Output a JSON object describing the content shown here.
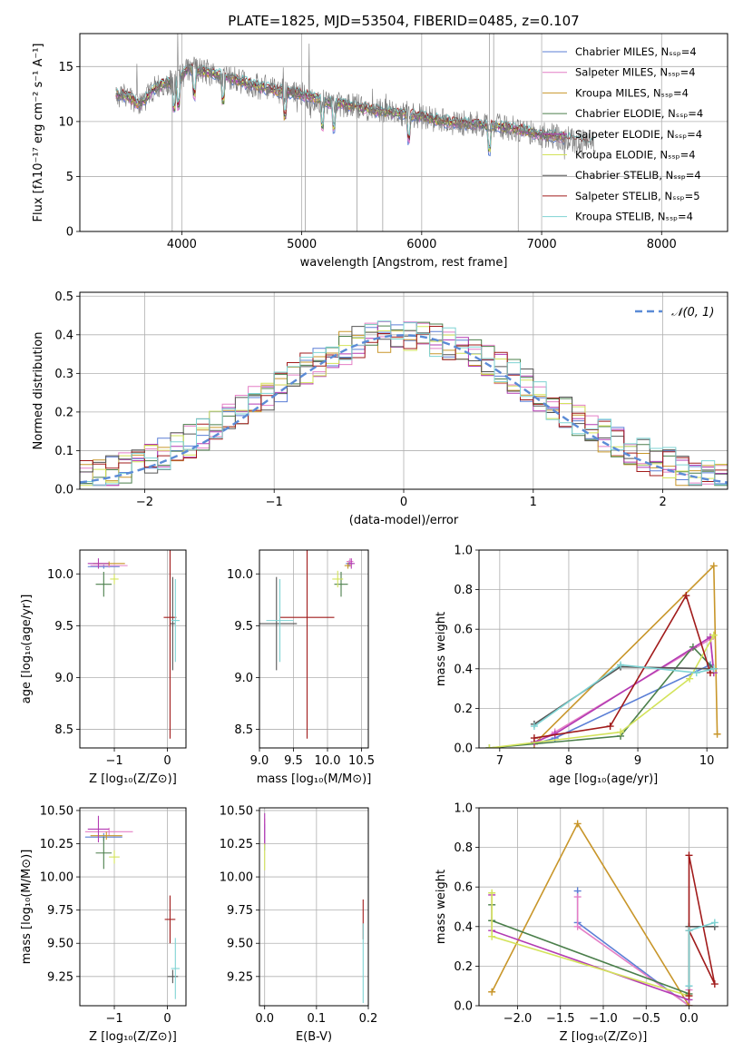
{
  "title": "PLATE=1825, MJD=53504, FIBERID=0485, z=0.107",
  "colors": [
    "#5b7fd6",
    "#e47fc6",
    "#c8962a",
    "#4b7f4b",
    "#b33bb3",
    "#d3e35a",
    "#555555",
    "#a11b1b",
    "#7ed3d3"
  ],
  "chart_data": [
    {
      "id": "spectrum",
      "type": "line",
      "title": "PLATE=1825, MJD=53504, FIBERID=0485, z=0.107",
      "xlabel": "wavelength [Angstrom, rest frame]",
      "ylabel": "Flux [fλ10⁻¹⁷ erg cm⁻² s⁻¹ A⁻¹]",
      "xlim": [
        3150,
        8550
      ],
      "ylim": [
        0,
        18
      ],
      "xticks": [
        "4000",
        "5000",
        "6000",
        "7000",
        "8000"
      ],
      "yticks": [
        "0",
        "5",
        "10",
        "15"
      ],
      "legend": "top-right",
      "data_trace": {
        "x": [
          3450,
          3550,
          3650,
          3750,
          3850,
          3950,
          4050,
          4200,
          4400,
          4600,
          4800,
          5000,
          5200,
          5400,
          5600,
          5800,
          6000,
          6200,
          6400,
          6600,
          6800,
          7000,
          7200,
          7400
        ],
        "y": [
          12.5,
          12.3,
          11.5,
          12.8,
          13.5,
          13.5,
          14.8,
          14.5,
          14.0,
          13.3,
          12.8,
          12.5,
          11.8,
          11.5,
          11.0,
          10.8,
          10.5,
          10.0,
          9.8,
          9.6,
          9.3,
          8.8,
          8.5,
          8.0
        ]
      },
      "series": [
        {
          "name": "Chabrier MILES, N_SSP=4"
        },
        {
          "name": "Salpeter MILES, N_SSP=4"
        },
        {
          "name": "Kroupa MILES, N_SSP=4"
        },
        {
          "name": "Chabrier ELODIE, N_SSP=4"
        },
        {
          "name": "Salpeter ELODIE, N_SSP=4"
        },
        {
          "name": "Kroupa ELODIE, N_SSP=4"
        },
        {
          "name": "Chabrier STELIB, N_SSP=4"
        },
        {
          "name": "Salpeter STELIB, N_SSP=5"
        },
        {
          "name": "Kroupa STELIB, N_SSP=4"
        }
      ]
    },
    {
      "id": "residuals",
      "type": "line",
      "xlabel": "(data-model)/error",
      "ylabel": "Normed distribution",
      "xlim": [
        -2.5,
        2.5
      ],
      "ylim": [
        0,
        0.51
      ],
      "xticks": [
        "−2",
        "−1",
        "0",
        "1",
        "2"
      ],
      "yticks": [
        "0.0",
        "0.1",
        "0.2",
        "0.3",
        "0.4",
        "0.5"
      ],
      "legend_label": "𝒩(0, 1)",
      "hist_centers": [
        -2.45,
        -2.35,
        -2.25,
        -2.15,
        -2.05,
        -1.95,
        -1.85,
        -1.75,
        -1.65,
        -1.55,
        -1.45,
        -1.35,
        -1.25,
        -1.15,
        -1.05,
        -0.95,
        -0.85,
        -0.75,
        -0.65,
        -0.55,
        -0.45,
        -0.35,
        -0.25,
        -0.15,
        -0.05,
        0.05,
        0.15,
        0.25,
        0.35,
        0.45,
        0.55,
        0.65,
        0.75,
        0.85,
        0.95,
        1.05,
        1.15,
        1.25,
        1.35,
        1.45,
        1.55,
        1.65,
        1.75,
        1.85,
        1.95,
        2.05,
        2.15,
        2.25,
        2.35,
        2.45
      ]
    },
    {
      "id": "age-z",
      "type": "scatter",
      "xlabel": "Z [log₁₀(Z/Z⊙)]",
      "ylabel": "age  [log₁₀(age/yr)]",
      "xlim": [
        -1.65,
        0.35
      ],
      "ylim": [
        8.32,
        10.23
      ],
      "xticks": [
        "−1",
        "0"
      ],
      "yticks": [
        "8.5",
        "9.0",
        "9.5",
        "10.0"
      ],
      "points": [
        {
          "s": 0,
          "x": -1.2,
          "y": 10.07,
          "ex": 0.3,
          "ey": 0.02
        },
        {
          "s": 1,
          "x": -1.1,
          "y": 10.08,
          "ex": 0.35,
          "ey": 0.02
        },
        {
          "s": 2,
          "x": -1.1,
          "y": 10.1,
          "ex": 0.3,
          "ey": 0.02
        },
        {
          "s": 3,
          "x": -1.2,
          "y": 9.9,
          "ex": 0.15,
          "ey": 0.12
        },
        {
          "s": 4,
          "x": -1.3,
          "y": 10.1,
          "ex": 0.2,
          "ey": 0.05
        },
        {
          "s": 5,
          "x": -1.0,
          "y": 9.95,
          "ex": 0.08,
          "ey": 0.05
        },
        {
          "s": 6,
          "x": 0.1,
          "y": 9.52,
          "ex": 0.05,
          "ey": 0.45
        },
        {
          "s": 7,
          "x": 0.05,
          "y": 9.58,
          "ex": 0.12,
          "ey": 1.17
        },
        {
          "s": 8,
          "x": 0.15,
          "y": 9.55,
          "ex": 0.08,
          "ey": 0.4
        }
      ]
    },
    {
      "id": "age-mass",
      "type": "scatter",
      "xlabel": "mass [log₁₀(M/M⊙)]",
      "ylabel": "",
      "xlim": [
        9.0,
        10.6
      ],
      "ylim": [
        8.32,
        10.23
      ],
      "xticks": [
        "9.0",
        "9.5",
        "10.0",
        "10.5"
      ],
      "yticks": [
        "8.5",
        "9.0",
        "9.5",
        "10.0"
      ],
      "points": [
        {
          "s": 0,
          "x": 10.32,
          "y": 10.1,
          "ex": 0.05,
          "ey": 0.03
        },
        {
          "s": 1,
          "x": 10.33,
          "y": 10.12,
          "ex": 0.05,
          "ey": 0.03
        },
        {
          "s": 2,
          "x": 10.3,
          "y": 10.08,
          "ex": 0.05,
          "ey": 0.03
        },
        {
          "s": 3,
          "x": 10.2,
          "y": 9.9,
          "ex": 0.1,
          "ey": 0.12
        },
        {
          "s": 4,
          "x": 10.35,
          "y": 10.1,
          "ex": 0.05,
          "ey": 0.05
        },
        {
          "s": 5,
          "x": 10.15,
          "y": 9.95,
          "ex": 0.08,
          "ey": 0.08
        },
        {
          "s": 6,
          "x": 9.25,
          "y": 9.52,
          "ex": 0.3,
          "ey": 0.45
        },
        {
          "s": 7,
          "x": 9.7,
          "y": 9.58,
          "ex": 0.4,
          "ey": 1.17
        },
        {
          "s": 8,
          "x": 9.3,
          "y": 9.55,
          "ex": 0.2,
          "ey": 0.4
        }
      ]
    },
    {
      "id": "weight-age",
      "type": "line",
      "xlabel": "age  [log₁₀(age/yr)]",
      "ylabel": "mass weight",
      "xlim": [
        6.7,
        10.3
      ],
      "ylim": [
        0,
        1.0
      ],
      "xticks": [
        "7",
        "8",
        "9",
        "10"
      ],
      "yticks": [
        "0.0",
        "0.2",
        "0.4",
        "0.6",
        "0.8",
        "1.0"
      ],
      "series": [
        {
          "s": 0,
          "x": [
            7.5,
            7.8,
            10.05,
            10.1
          ],
          "y": [
            0.02,
            0.05,
            0.42,
            0.4
          ]
        },
        {
          "s": 1,
          "x": [
            7.5,
            7.8,
            10.05,
            10.1
          ],
          "y": [
            0.02,
            0.08,
            0.55,
            0.38
          ]
        },
        {
          "s": 2,
          "x": [
            7.5,
            10.1,
            10.15
          ],
          "y": [
            0.02,
            0.92,
            0.07
          ]
        },
        {
          "s": 3,
          "x": [
            6.85,
            8.75,
            9.8,
            10.1
          ],
          "y": [
            0.0,
            0.06,
            0.51,
            0.4
          ]
        },
        {
          "s": 4,
          "x": [
            7.5,
            7.8,
            10.05,
            10.1
          ],
          "y": [
            0.03,
            0.07,
            0.56,
            0.38
          ]
        },
        {
          "s": 5,
          "x": [
            6.85,
            8.75,
            9.75,
            10.1
          ],
          "y": [
            0.0,
            0.08,
            0.35,
            0.57
          ]
        },
        {
          "s": 6,
          "x": [
            7.5,
            8.75,
            10.05,
            10.1
          ],
          "y": [
            0.12,
            0.41,
            0.4,
            0.4
          ]
        },
        {
          "s": 7,
          "x": [
            7.5,
            8.6,
            9.7,
            10.05
          ],
          "y": [
            0.05,
            0.11,
            0.77,
            0.38
          ]
        },
        {
          "s": 8,
          "x": [
            7.5,
            8.75,
            9.85,
            10.1
          ],
          "y": [
            0.11,
            0.42,
            0.38,
            0.4
          ]
        }
      ]
    },
    {
      "id": "mass-z",
      "type": "scatter",
      "xlabel": "Z [log₁₀(Z/Z⊙)]",
      "ylabel": "mass [log₁₀(M/M⊙)]",
      "xlim": [
        -1.65,
        0.35
      ],
      "ylim": [
        9.03,
        10.52
      ],
      "xticks": [
        "−1",
        "0"
      ],
      "yticks": [
        "9.25",
        "9.50",
        "9.75",
        "10.00",
        "10.25",
        "10.50"
      ],
      "points": [
        {
          "s": 0,
          "x": -1.2,
          "y": 10.3,
          "ex": 0.35,
          "ey": 0.03
        },
        {
          "s": 1,
          "x": -1.1,
          "y": 10.34,
          "ex": 0.45,
          "ey": 0.03
        },
        {
          "s": 2,
          "x": -1.15,
          "y": 10.31,
          "ex": 0.3,
          "ey": 0.03
        },
        {
          "s": 3,
          "x": -1.2,
          "y": 10.18,
          "ex": 0.15,
          "ey": 0.12
        },
        {
          "s": 4,
          "x": -1.3,
          "y": 10.36,
          "ex": 0.2,
          "ey": 0.1
        },
        {
          "s": 5,
          "x": -1.0,
          "y": 10.15,
          "ex": 0.1,
          "ey": 0.05
        },
        {
          "s": 6,
          "x": 0.1,
          "y": 9.25,
          "ex": 0.1,
          "ey": 0.05
        },
        {
          "s": 7,
          "x": 0.05,
          "y": 9.68,
          "ex": 0.1,
          "ey": 0.18
        },
        {
          "s": 8,
          "x": 0.15,
          "y": 9.31,
          "ex": 0.08,
          "ey": 0.23
        }
      ]
    },
    {
      "id": "mass-ebv",
      "type": "scatter",
      "xlabel": "E(B-V)",
      "ylabel": "",
      "xlim": [
        -0.01,
        0.2
      ],
      "ylim": [
        9.03,
        10.52
      ],
      "xticks": [
        "0.0",
        "0.1",
        "0.2"
      ],
      "yticks": [
        "9.25",
        "9.50",
        "9.75",
        "10.00",
        "10.25",
        "10.50"
      ],
      "points": [
        {
          "s": 0,
          "x": 0.0,
          "y": 10.3,
          "ex": 0.0,
          "ey": 0.1
        },
        {
          "s": 1,
          "x": 0.0,
          "y": 10.34,
          "ex": 0.0,
          "ey": 0.1
        },
        {
          "s": 4,
          "x": 0.0,
          "y": 10.36,
          "ex": 0.0,
          "ey": 0.12
        },
        {
          "s": 5,
          "x": 0.0,
          "y": 10.15,
          "ex": 0.0,
          "ey": 0.1
        },
        {
          "s": 7,
          "x": 0.19,
          "y": 9.68,
          "ex": 0.0,
          "ey": 0.15
        },
        {
          "s": 8,
          "x": 0.19,
          "y": 9.35,
          "ex": 0.0,
          "ey": 0.3
        }
      ]
    },
    {
      "id": "weight-z",
      "type": "line",
      "xlabel": "Z [log₁₀(Z/Z⊙)]",
      "ylabel": "mass weight",
      "xlim": [
        -2.45,
        0.45
      ],
      "ylim": [
        0,
        1.0
      ],
      "xticks": [
        "−2.0",
        "−1.5",
        "−1.0",
        "−0.5",
        "0.0"
      ],
      "yticks": [
        "0.0",
        "0.2",
        "0.4",
        "0.6",
        "0.8",
        "1.0"
      ],
      "series": [
        {
          "s": 0,
          "x": [
            -1.3,
            -1.3,
            0.0,
            0.0
          ],
          "y": [
            0.58,
            0.42,
            0.0,
            0.1
          ]
        },
        {
          "s": 1,
          "x": [
            -1.3,
            -1.3,
            0.0,
            0.0
          ],
          "y": [
            0.55,
            0.4,
            0.0,
            0.08
          ]
        },
        {
          "s": 2,
          "x": [
            -2.3,
            -1.3,
            0.0
          ],
          "y": [
            0.07,
            0.92,
            0.0
          ]
        },
        {
          "s": 3,
          "x": [
            -2.3,
            -2.3,
            0.0,
            0.0
          ],
          "y": [
            0.51,
            0.43,
            0.06,
            0.4
          ]
        },
        {
          "s": 4,
          "x": [
            -2.3,
            -2.3,
            0.0
          ],
          "y": [
            0.56,
            0.38,
            0.03
          ]
        },
        {
          "s": 5,
          "x": [
            -2.3,
            -2.3,
            0.0
          ],
          "y": [
            0.57,
            0.35,
            0.05
          ]
        },
        {
          "s": 6,
          "x": [
            0.0,
            0.3
          ],
          "y": [
            0.4,
            0.4
          ]
        },
        {
          "s": 7,
          "x": [
            0.0,
            0.0,
            0.3,
            0.0
          ],
          "y": [
            0.05,
            0.76,
            0.11,
            0.38
          ]
        },
        {
          "s": 8,
          "x": [
            0.0,
            0.0,
            0.3
          ],
          "y": [
            0.1,
            0.38,
            0.42
          ]
        }
      ]
    }
  ]
}
